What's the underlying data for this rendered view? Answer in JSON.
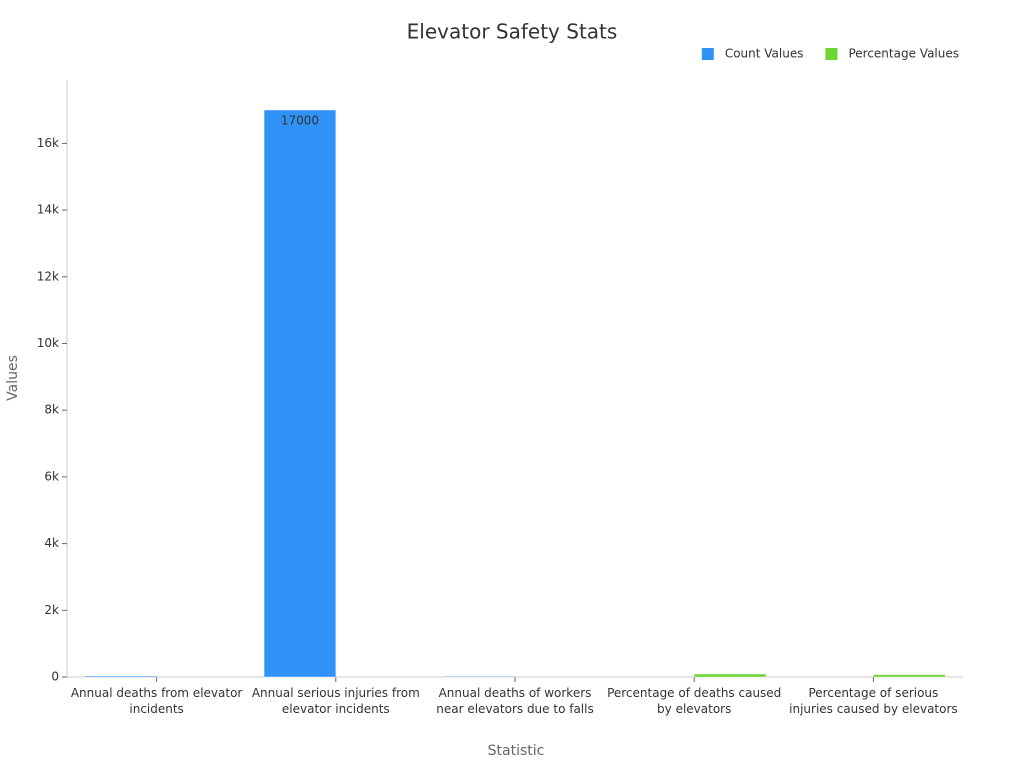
{
  "chart_data": {
    "type": "bar",
    "title": "Elevator Safety Stats",
    "x_label": "Statistic",
    "y_label": "Values",
    "categories": [
      "Annual deaths from elevator incidents",
      "Annual serious injuries from elevator incidents",
      "Annual deaths of workers near elevators due to falls",
      "Percentage of deaths caused by elevators",
      "Percentage of serious injuries caused by elevators"
    ],
    "series": [
      {
        "name": "Count Values",
        "color": "#2f92f6",
        "values": [
          30,
          17000,
          17,
          null,
          null
        ]
      },
      {
        "name": "Percentage Values",
        "color": "#6bd62f",
        "values": [
          null,
          null,
          null,
          90,
          70
        ]
      }
    ],
    "ylim": [
      0,
      17900
    ],
    "yticks": [
      0,
      {
        "value": 2000,
        "label": "2k"
      },
      {
        "value": 4000,
        "label": "4k"
      },
      {
        "value": 6000,
        "label": "6k"
      },
      {
        "value": 8000,
        "label": "8k"
      },
      {
        "value": 10000,
        "label": "10k"
      },
      {
        "value": 12000,
        "label": "12k"
      },
      {
        "value": 14000,
        "label": "14k"
      },
      {
        "value": 16000,
        "label": "16k"
      }
    ],
    "grid": false,
    "legend": "top-right"
  }
}
